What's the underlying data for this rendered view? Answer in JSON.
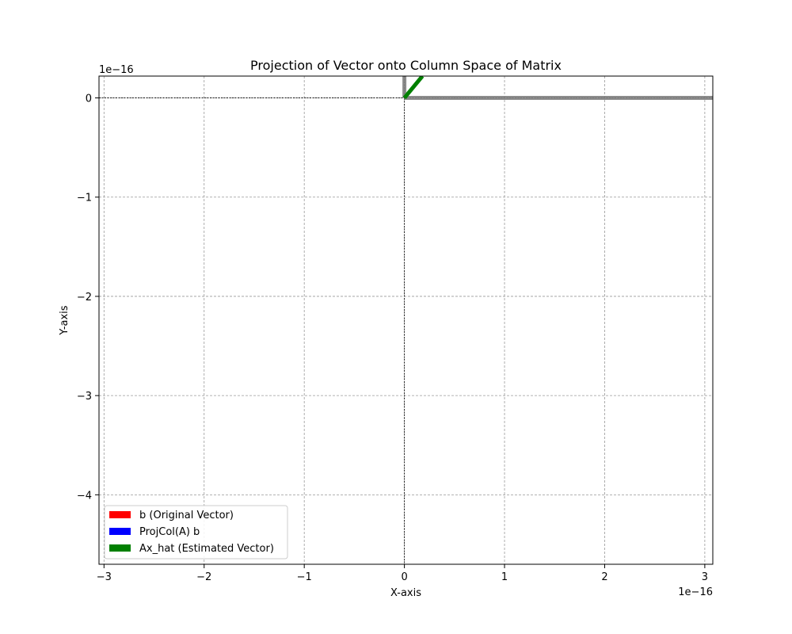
{
  "chart_data": {
    "type": "line",
    "title": "Projection of Vector onto Column Space of Matrix",
    "xlabel": "X-axis",
    "ylabel": "Y-axis",
    "x_offset_label": "1e−16",
    "y_offset_label": "1e−16",
    "xlim": [
      -3.05,
      3.08
    ],
    "ylim": [
      -4.7,
      0.22
    ],
    "x_ticks": [
      {
        "value": -3,
        "label": "−3"
      },
      {
        "value": -2,
        "label": "−2"
      },
      {
        "value": -1,
        "label": "−1"
      },
      {
        "value": 0,
        "label": "0"
      },
      {
        "value": 1,
        "label": "1"
      },
      {
        "value": 2,
        "label": "2"
      },
      {
        "value": 3,
        "label": "3"
      }
    ],
    "y_ticks": [
      {
        "value": 0,
        "label": "0"
      },
      {
        "value": -1,
        "label": "−1"
      },
      {
        "value": -2,
        "label": "−2"
      },
      {
        "value": -3,
        "label": "−3"
      },
      {
        "value": -4,
        "label": "−4"
      }
    ],
    "grid": true,
    "legend_position": "lower-left",
    "series": [
      {
        "name": "b (Original Vector)",
        "color": "#ff0000",
        "x": [
          0,
          0
        ],
        "y": [
          0,
          0
        ]
      },
      {
        "name": "ProjCol(A) b",
        "color": "#0000ff",
        "x": [
          0,
          0
        ],
        "y": [
          0,
          0
        ]
      },
      {
        "name": "Ax_hat (Estimated Vector)",
        "color": "#008000",
        "x": [
          0,
          0.18
        ],
        "y": [
          0,
          0.22
        ]
      }
    ],
    "gray_lines": [
      {
        "color": "#808080",
        "x": [
          0,
          0
        ],
        "y": [
          0,
          0.22
        ]
      },
      {
        "color": "#808080",
        "x": [
          0,
          3.08
        ],
        "y": [
          0,
          0
        ]
      }
    ]
  }
}
